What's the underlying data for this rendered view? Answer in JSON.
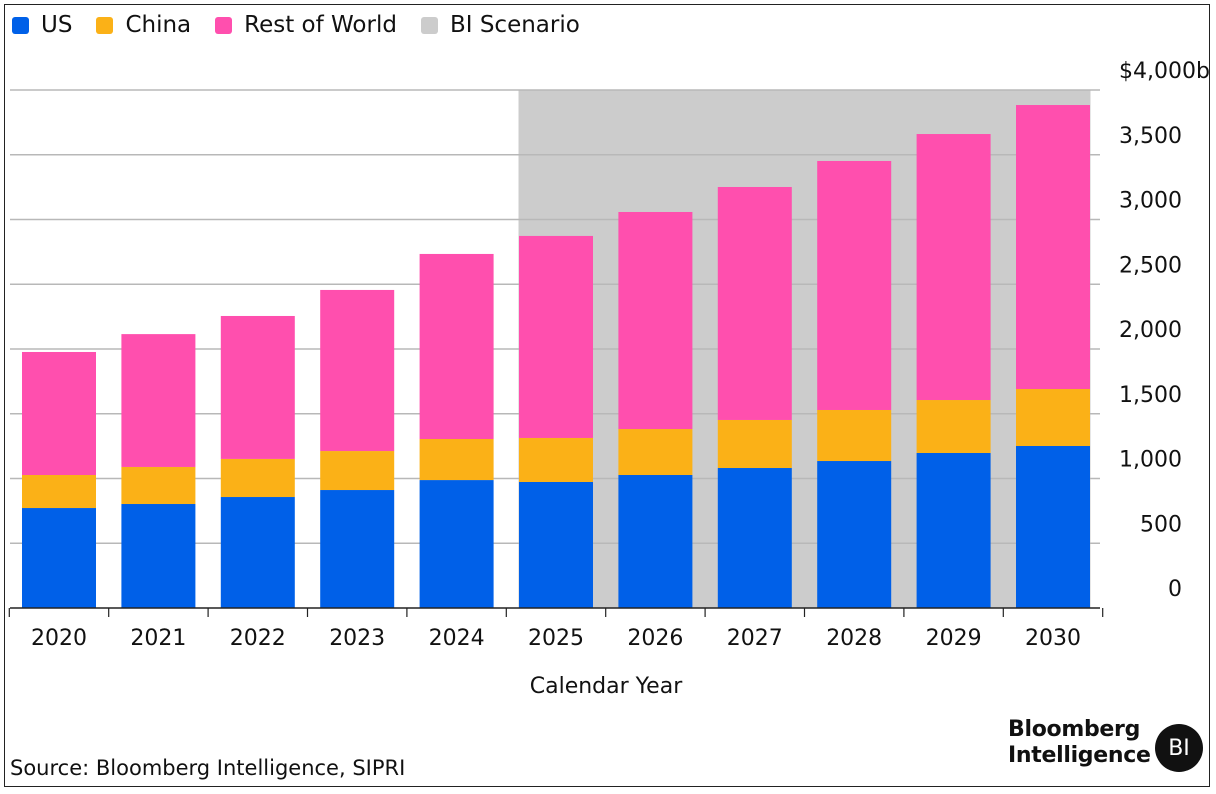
{
  "chart_data": {
    "type": "bar",
    "stacked": true,
    "title": "",
    "xlabel": "Calendar Year",
    "ylabel": "",
    "ylim": [
      0,
      4000
    ],
    "y_ticks": [
      0,
      500,
      1000,
      1500,
      2000,
      2500,
      3000,
      3500,
      4000
    ],
    "y_tick_labels": [
      "0",
      "500",
      "1,000",
      "1,500",
      "2,000",
      "2,500",
      "3,000",
      "3,500",
      "$4,000b"
    ],
    "y_axis_position": "right",
    "grid": true,
    "legend_position": "top-left",
    "categories": [
      "2020",
      "2021",
      "2022",
      "2023",
      "2024",
      "2025",
      "2026",
      "2027",
      "2028",
      "2029",
      "2030"
    ],
    "series": [
      {
        "name": "US",
        "color": "#0060e8",
        "values": [
          772,
          803,
          857,
          911,
          988,
          973,
          1027,
          1081,
          1135,
          1197,
          1251
        ]
      },
      {
        "name": "China",
        "color": "#fbb117",
        "values": [
          255,
          286,
          294,
          301,
          317,
          340,
          355,
          371,
          394,
          409,
          440
        ]
      },
      {
        "name": "Rest of World",
        "color": "#ff4fae",
        "values": [
          950,
          1026,
          1104,
          1244,
          1429,
          1560,
          1676,
          1799,
          1923,
          2054,
          2193
        ]
      }
    ],
    "shaded_region": {
      "name": "BI Scenario",
      "color": "#cccccc",
      "from_category": "2025",
      "to_category": "2030"
    },
    "legend": [
      {
        "label": "US",
        "color": "#0060e8"
      },
      {
        "label": "China",
        "color": "#fbb117"
      },
      {
        "label": "Rest of World",
        "color": "#ff4fae"
      },
      {
        "label": "BI Scenario",
        "color": "#cccccc"
      }
    ]
  },
  "footer": {
    "source": "Source: Bloomberg Intelligence, SIPRI",
    "brand_line1": "Bloomberg",
    "brand_line2": "Intelligence",
    "brand_badge": "BI"
  }
}
